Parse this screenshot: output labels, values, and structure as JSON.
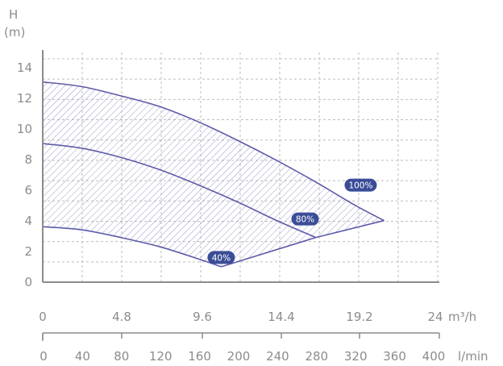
{
  "chart_data": {
    "type": "area",
    "y_axis": {
      "label_line1": "H",
      "label_line2": "(m)",
      "ticks": [
        "0",
        "2",
        "4",
        "6",
        "8",
        "10",
        "12",
        "14"
      ],
      "range": [
        0,
        14.5
      ]
    },
    "x_axis_flow_m3h": {
      "unit": "m³/h",
      "ticks": [
        "0",
        "4.8",
        "9.6",
        "14.4",
        "19.2",
        "24"
      ],
      "range": [
        0,
        24
      ]
    },
    "x_axis_flow_lmin": {
      "unit": "l/min",
      "ticks": [
        "0",
        "40",
        "80",
        "120",
        "160",
        "200",
        "240",
        "280",
        "320",
        "360",
        "400"
      ],
      "range": [
        0,
        400
      ]
    },
    "grid": true,
    "series": [
      {
        "name": "100%",
        "x": [
          0,
          40,
          80,
          120,
          160,
          200,
          240,
          280,
          320,
          350
        ],
        "y": [
          13.0,
          12.7,
          12.1,
          11.4,
          10.4,
          9.2,
          7.9,
          6.5,
          5.0,
          4.0
        ]
      },
      {
        "name": "80%",
        "x": [
          0,
          40,
          80,
          120,
          160,
          200,
          240,
          280
        ],
        "y": [
          9.0,
          8.7,
          8.1,
          7.3,
          6.3,
          5.2,
          4.0,
          2.9
        ]
      },
      {
        "name": "40%",
        "x": [
          0,
          40,
          80,
          120,
          160,
          183
        ],
        "y": [
          3.6,
          3.4,
          2.9,
          2.3,
          1.5,
          1.0
        ]
      },
      {
        "name": "",
        "x": [
          183,
          280,
          350
        ],
        "y": [
          1.0,
          2.9,
          4.0
        ]
      }
    ],
    "shaded_region": "operating range between 40% and 100% curves",
    "colors": {
      "curve": "#5d5ba8",
      "badge": "#3b4d97",
      "grid": "#bdbdbd",
      "axis": "#8c8c8c",
      "text": "#8c8c8c"
    }
  }
}
